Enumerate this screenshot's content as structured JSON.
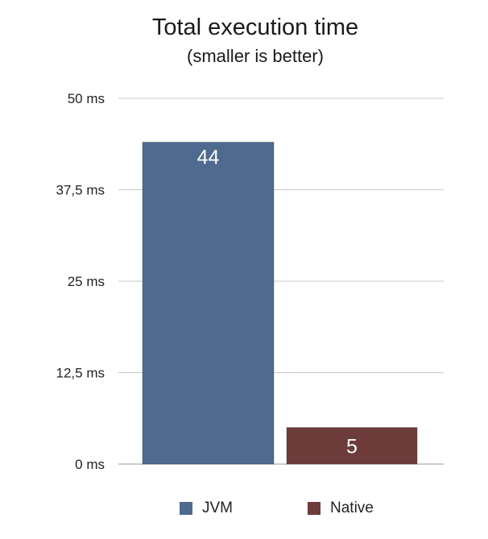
{
  "chart_data": {
    "type": "bar",
    "title": "Total execution time",
    "subtitle": "(smaller is better)",
    "categories": [
      "JVM",
      "Native"
    ],
    "values": [
      44,
      5
    ],
    "data_labels": [
      "44",
      "5"
    ],
    "colors": [
      "#4e6a8e",
      "#6e3b3b"
    ],
    "ylim": [
      0,
      50
    ],
    "yticks": [
      0,
      12.5,
      25,
      37.5,
      50
    ],
    "ytick_labels": [
      "0 ms",
      "12,5 ms",
      "25 ms",
      "37,5 ms",
      "50 ms"
    ],
    "grid": true,
    "legend": {
      "placement": "bottom",
      "entries": [
        "JVM",
        "Native"
      ]
    }
  }
}
